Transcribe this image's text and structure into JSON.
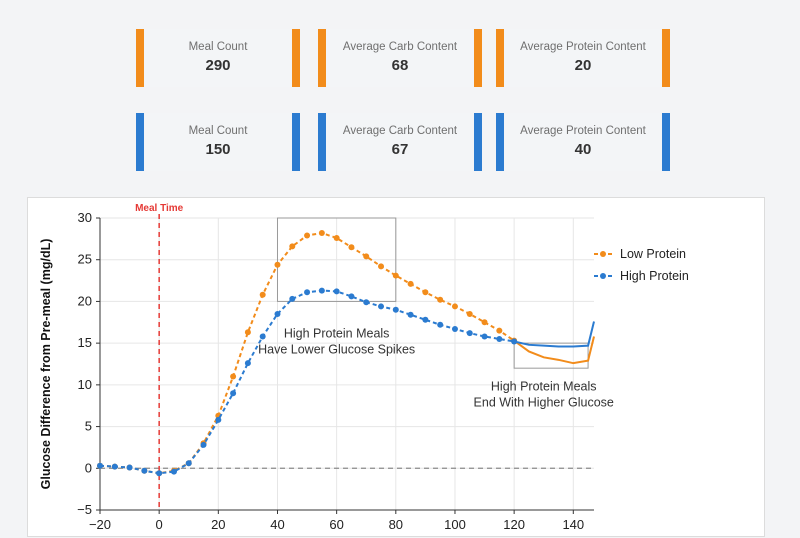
{
  "summary_cards": [
    [
      {
        "label": "Meal Count",
        "value": "290"
      },
      {
        "label": "Average Carb Content",
        "value": "68"
      },
      {
        "label": "Average Protein Content",
        "value": "20"
      }
    ],
    [
      {
        "label": "Meal Count",
        "value": "150"
      },
      {
        "label": "Average Carb Content",
        "value": "67"
      },
      {
        "label": "Average Protein Content",
        "value": "40"
      }
    ]
  ],
  "colors": {
    "low_protein": "#f28c1b",
    "high_protein": "#2b7bd0",
    "meal_line": "#e53935"
  },
  "chart_data": {
    "type": "line",
    "ylabel": "Glucose Difference from Pre-meal (mg/dL)",
    "xlim": [
      -20,
      147
    ],
    "ylim": [
      -5,
      30
    ],
    "xticks": [
      -20,
      0,
      20,
      40,
      60,
      80,
      100,
      120,
      140
    ],
    "yticks": [
      -5,
      0,
      5,
      10,
      15,
      20,
      25,
      30
    ],
    "grid": true,
    "legend_position": "right",
    "meal_time": {
      "x": 0,
      "label": "Meal Time"
    },
    "series": [
      {
        "name": "Low Protein",
        "color": "#f28c1b",
        "dash": true,
        "x": [
          -20,
          -15,
          -10,
          -5,
          0,
          5,
          10,
          15,
          20,
          25,
          30,
          35,
          40,
          45,
          50,
          55,
          60,
          65,
          70,
          75,
          80,
          85,
          90,
          95,
          100,
          105,
          110,
          115,
          120,
          125,
          130,
          135,
          140,
          145,
          147
        ],
        "y": [
          0.3,
          0.2,
          0.1,
          -0.3,
          -0.6,
          -0.3,
          0.6,
          3.0,
          6.3,
          11.0,
          16.3,
          20.8,
          24.4,
          26.6,
          27.9,
          28.2,
          27.6,
          26.5,
          25.4,
          24.2,
          23.1,
          22.1,
          21.1,
          20.2,
          19.4,
          18.5,
          17.5,
          16.5,
          15.3,
          14.0,
          13.3,
          13.0,
          12.6,
          12.9,
          15.8
        ],
        "markers_through_x": 120
      },
      {
        "name": "High Protein",
        "color": "#2b7bd0",
        "dash": true,
        "x": [
          -20,
          -15,
          -10,
          -5,
          0,
          5,
          10,
          15,
          20,
          25,
          30,
          35,
          40,
          45,
          50,
          55,
          60,
          65,
          70,
          75,
          80,
          85,
          90,
          95,
          100,
          105,
          110,
          115,
          120,
          125,
          130,
          135,
          140,
          145,
          147
        ],
        "y": [
          0.3,
          0.2,
          0.1,
          -0.3,
          -0.6,
          -0.4,
          0.6,
          2.8,
          5.8,
          9.0,
          12.6,
          15.8,
          18.5,
          20.3,
          21.1,
          21.3,
          21.2,
          20.6,
          19.9,
          19.4,
          19.0,
          18.4,
          17.8,
          17.2,
          16.7,
          16.2,
          15.8,
          15.5,
          15.2,
          14.8,
          14.7,
          14.6,
          14.6,
          14.7,
          17.6
        ],
        "markers_through_x": 120
      }
    ],
    "zero_line": {
      "y": 0,
      "style": "dashed"
    },
    "annotations": [
      {
        "text_lines": [
          "High Protein Meals",
          "Have Lower Glucose Spikes"
        ],
        "box": {
          "x0": 40,
          "x1": 80,
          "y0": 20,
          "y1": 30
        }
      },
      {
        "text_lines": [
          "High Protein Meals",
          "End With Higher Glucose"
        ],
        "box": {
          "x0": 120,
          "x1": 145,
          "y0": 12,
          "y1": 15
        }
      }
    ]
  }
}
